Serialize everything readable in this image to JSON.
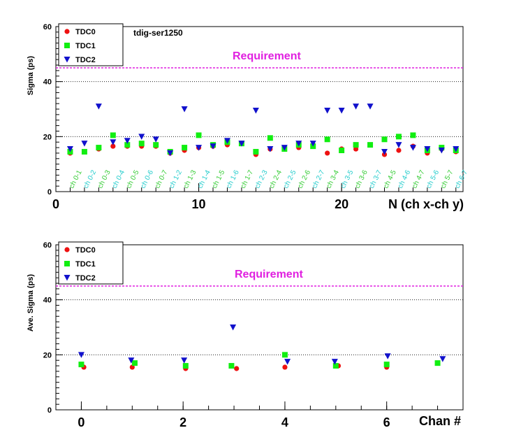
{
  "colors": {
    "tdc0": "#ee1111",
    "tdc1": "#11ee11",
    "tdc2": "#1111cc",
    "requirement": "#e020e0",
    "ch_label_a": "#33cc33",
    "ch_label_b": "#22cccc"
  },
  "chart_data": [
    {
      "type": "scatter",
      "title": "tdig-ser1250",
      "ylabel": "Sigma (ps)",
      "xlabel": "N (ch x-ch y)",
      "ylim": [
        0,
        60
      ],
      "xlim": [
        0,
        28.5
      ],
      "yticks": [
        0,
        20,
        40,
        60
      ],
      "xticks": [
        0,
        10,
        20
      ],
      "grid": "horizontal dotted",
      "legend_position": "top-left",
      "requirement": {
        "label": "Requirement",
        "value": 45
      },
      "categories": [
        "ch 0-1",
        "ch 0-2",
        "ch 0-3",
        "ch 0-4",
        "ch 0-5",
        "ch 0-6",
        "ch 0-7",
        "ch 1-2",
        "ch 1-3",
        "ch 1-4",
        "ch 1-5",
        "ch 1-6",
        "ch 1-7",
        "ch 2-3",
        "ch 2-4",
        "ch 2-5",
        "ch 2-6",
        "ch 2-7",
        "ch 3-4",
        "ch 3-5",
        "ch 3-6",
        "ch 3-7",
        "ch 4-5",
        "ch 4-6",
        "ch 4-7",
        "ch 5-6",
        "ch 5-7",
        "ch 6-7"
      ],
      "x": [
        1,
        2,
        3,
        4,
        5,
        6,
        7,
        8,
        9,
        10,
        11,
        12,
        13,
        14,
        15,
        16,
        17,
        18,
        19,
        20,
        21,
        22,
        23,
        24,
        25,
        26,
        27,
        28
      ],
      "series": [
        {
          "name": "TDC0",
          "marker": "circle",
          "values": [
            14.0,
            14.5,
            15.5,
            16.5,
            16.5,
            16.5,
            16.5,
            14.0,
            15.0,
            16.0,
            16.5,
            17.0,
            17.5,
            13.5,
            15.5,
            15.5,
            16.0,
            17.0,
            14.0,
            15.5,
            15.5,
            17.0,
            13.5,
            15.0,
            16.5,
            14.0,
            15.5,
            14.5
          ]
        },
        {
          "name": "TDC1",
          "marker": "square",
          "values": [
            14.5,
            14.5,
            16.0,
            20.5,
            17.0,
            17.5,
            17.0,
            14.5,
            16.0,
            20.5,
            17.0,
            18.0,
            17.5,
            14.5,
            19.5,
            15.5,
            17.0,
            16.5,
            19.0,
            15.0,
            17.0,
            17.0,
            19.0,
            20.0,
            20.5,
            15.0,
            16.0,
            15.0
          ]
        },
        {
          "name": "TDC2",
          "marker": "triangle-down",
          "values": [
            15.5,
            17.5,
            31.0,
            18.0,
            18.5,
            20.0,
            19.0,
            14.0,
            30.0,
            16.0,
            16.5,
            18.5,
            17.5,
            29.5,
            15.5,
            16.0,
            17.5,
            17.5,
            29.5,
            29.5,
            31.0,
            31.0,
            14.5,
            17.0,
            16.0,
            15.5,
            15.0,
            15.5
          ]
        }
      ]
    },
    {
      "type": "scatter",
      "ylabel": "Ave. Sigma (ps)",
      "xlabel": "Chan #",
      "ylim": [
        0,
        60
      ],
      "xlim": [
        -0.5,
        7.5
      ],
      "yticks": [
        0,
        20,
        40,
        60
      ],
      "xticks": [
        0,
        2,
        4,
        6
      ],
      "grid": "horizontal dotted",
      "legend_position": "top-left",
      "requirement": {
        "label": "Requirement",
        "value": 45
      },
      "series": [
        {
          "name": "TDC0",
          "marker": "circle",
          "x": [
            0.05,
            1.0,
            2.05,
            3.05,
            4.0,
            5.05,
            6.0,
            7.0
          ],
          "values": [
            15.5,
            15.5,
            15.0,
            15.0,
            15.5,
            16.0,
            15.5,
            17.0
          ]
        },
        {
          "name": "TDC1",
          "marker": "square",
          "x": [
            0.0,
            1.05,
            2.05,
            2.95,
            4.0,
            5.0,
            6.0,
            7.0
          ],
          "values": [
            16.5,
            17.0,
            16.0,
            16.0,
            20.0,
            16.0,
            16.5,
            17.0
          ]
        },
        {
          "name": "TDC2",
          "marker": "triangle-down",
          "x": [
            0.0,
            0.98,
            2.02,
            2.98,
            4.05,
            4.98,
            6.02,
            7.1
          ],
          "values": [
            20.0,
            18.0,
            18.0,
            30.0,
            17.5,
            17.5,
            19.5,
            18.5
          ]
        }
      ]
    }
  ]
}
